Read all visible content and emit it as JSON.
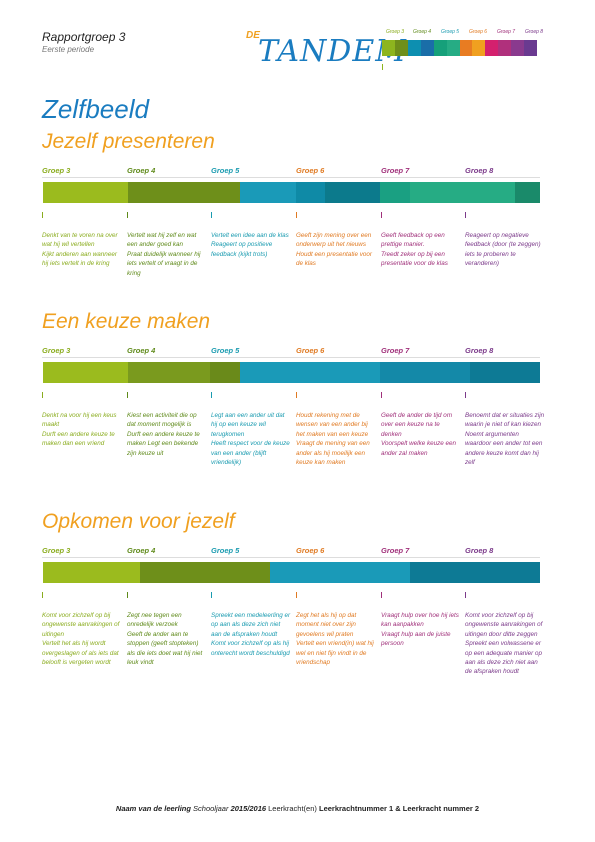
{
  "header": {
    "title": "Rapportgroep 3",
    "period": "Eerste periode",
    "logo_prefix": "DE",
    "logo": "TANDEM"
  },
  "groups": [
    "Groep 3",
    "Groep 4",
    "Groep 5",
    "Groep 6",
    "Groep 7",
    "Groep 8"
  ],
  "main_title": "Zelfbeeld",
  "sections": [
    {
      "title": "Jezelf presenteren",
      "descriptions": [
        [
          "Denkt van te voren na over wat hij wil vertellen",
          "Kijkt anderen aan wanneer hij iets vertelt in de kring"
        ],
        [
          "Vertelt wat hij zelf en wat een ander goed kan",
          "Praat duidelijk wanneer hij iets vertelt of vraagt in de kring"
        ],
        [
          "Vertelt een idee aan de klas",
          "Reageert op positieve feedback (kijkt trots)"
        ],
        [
          "Geeft zijn mening over een onderwerp uit het nieuws",
          "Houdt een presentatie voor de klas"
        ],
        [
          "Geeft feedback op een prettige manier.",
          "Treedt zeker op bij een presentatie voor de klas"
        ],
        [
          "Reageert op negatieve feedback (door (te zeggen) iets te proberen te veranderen)"
        ]
      ]
    },
    {
      "title": "Een keuze maken",
      "descriptions": [
        [
          "Denkt na voor hij een keus maakt",
          "Durft een andere keuze te maken dan een vriend"
        ],
        [
          "Kiest een activiteit die op dat moment mogelijk is",
          "Durft een andere keuze te maken Legt een bekende zijn keuze uit"
        ],
        [
          "Legt aan een ander uit dat hij op een keuze wil terugkomen",
          "Heeft respect voor de keuze van een ander (blijft vriendelijk)"
        ],
        [
          "Houdt rekening met de wensen van een ander bij het maken van een keuze",
          "Vraagt de mening van een ander als hij moeilijk een keuze kan maken"
        ],
        [
          "Geeft de ander de tijd om over een keuze na te denken",
          "Voorspelt welke keuze een ander zal maken"
        ],
        [
          "Benoemt dat er situaties zijn waarin je niet of kan kiezen",
          "Noemt argumenten waardoor een ander tot een andere keuze komt dan hij zelf"
        ]
      ]
    },
    {
      "title": "Opkomen voor jezelf",
      "descriptions": [
        [
          "Komt voor zichzelf op bij ongewenste aanrakingen of uitingen",
          "Vertelt het als hij wordt overgeslagen of als iets dat belooft is vergeten wordt"
        ],
        [
          "Zegt nee tegen een onredelijk verzoek",
          "Geeft de ander aan te stoppen (geeft stopteken) als die iets doet wat hij niet leuk vindt"
        ],
        [
          "Spreekt een medeleerling er op aan als deze zich niet aan de afspraken houdt",
          "Komt voor zichzelf op als hij onterecht wordt beschuldigd"
        ],
        [
          "Zegt het als hij op dat moment niet over zijn gevoelens wil praten",
          "Vertelt een vriend(in) wat hij wel en niet fijn vindt in de vriendschap"
        ],
        [
          "Vraagt hulp over hoe hij iets kan aanpakken",
          "Vraagt hulp aan de juiste persoon"
        ],
        [
          "Komt voor zichzelf op bij ongewenste aanrakingen of uitingen door ditte zeggen",
          "Spreekt een volwassene er op een adequate manier op aan als deze zich niet aan de afspraken houdt"
        ]
      ]
    }
  ],
  "footer": {
    "student_label": "Naam van de leerling",
    "year_label": "Schooljaar",
    "year": "2015/2016",
    "teacher_label": "Leerkracht(en)",
    "teachers": "Leerkrachtnummer 1 & Leerkracht nummer 2"
  }
}
